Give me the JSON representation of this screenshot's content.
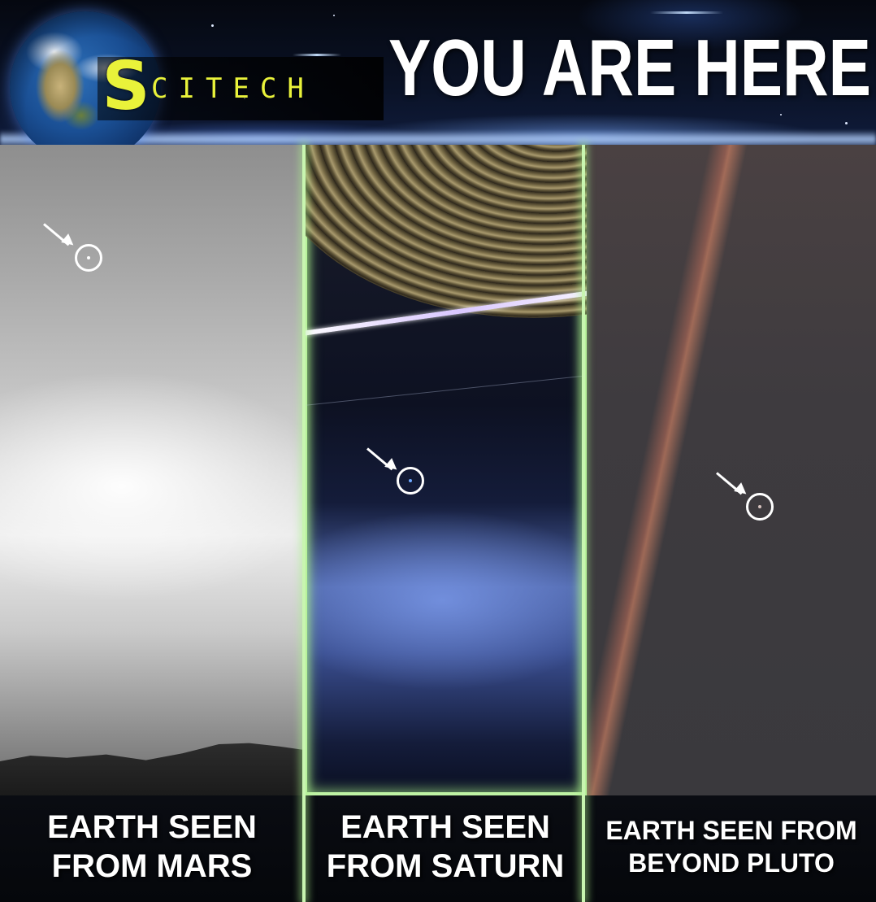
{
  "header": {
    "logo_initial": "S",
    "logo_rest": "CITECH",
    "title": "YOU ARE HERE!"
  },
  "panels": [
    {
      "id": "mars",
      "caption_line1": "EARTH SEEN",
      "caption_line2": "FROM MARS"
    },
    {
      "id": "saturn",
      "caption_line1": "EARTH SEEN",
      "caption_line2": "FROM SATURN"
    },
    {
      "id": "pluto",
      "caption_line1": "EARTH SEEN FROM",
      "caption_line2": "BEYOND PLUTO"
    }
  ],
  "colors": {
    "logo_yellow": "#e9f23a",
    "divider_glow": "#c8f5b0",
    "title_white": "#ffffff"
  },
  "icons": [
    "arrow-icon",
    "circle-marker-icon",
    "earth-globe-icon"
  ]
}
